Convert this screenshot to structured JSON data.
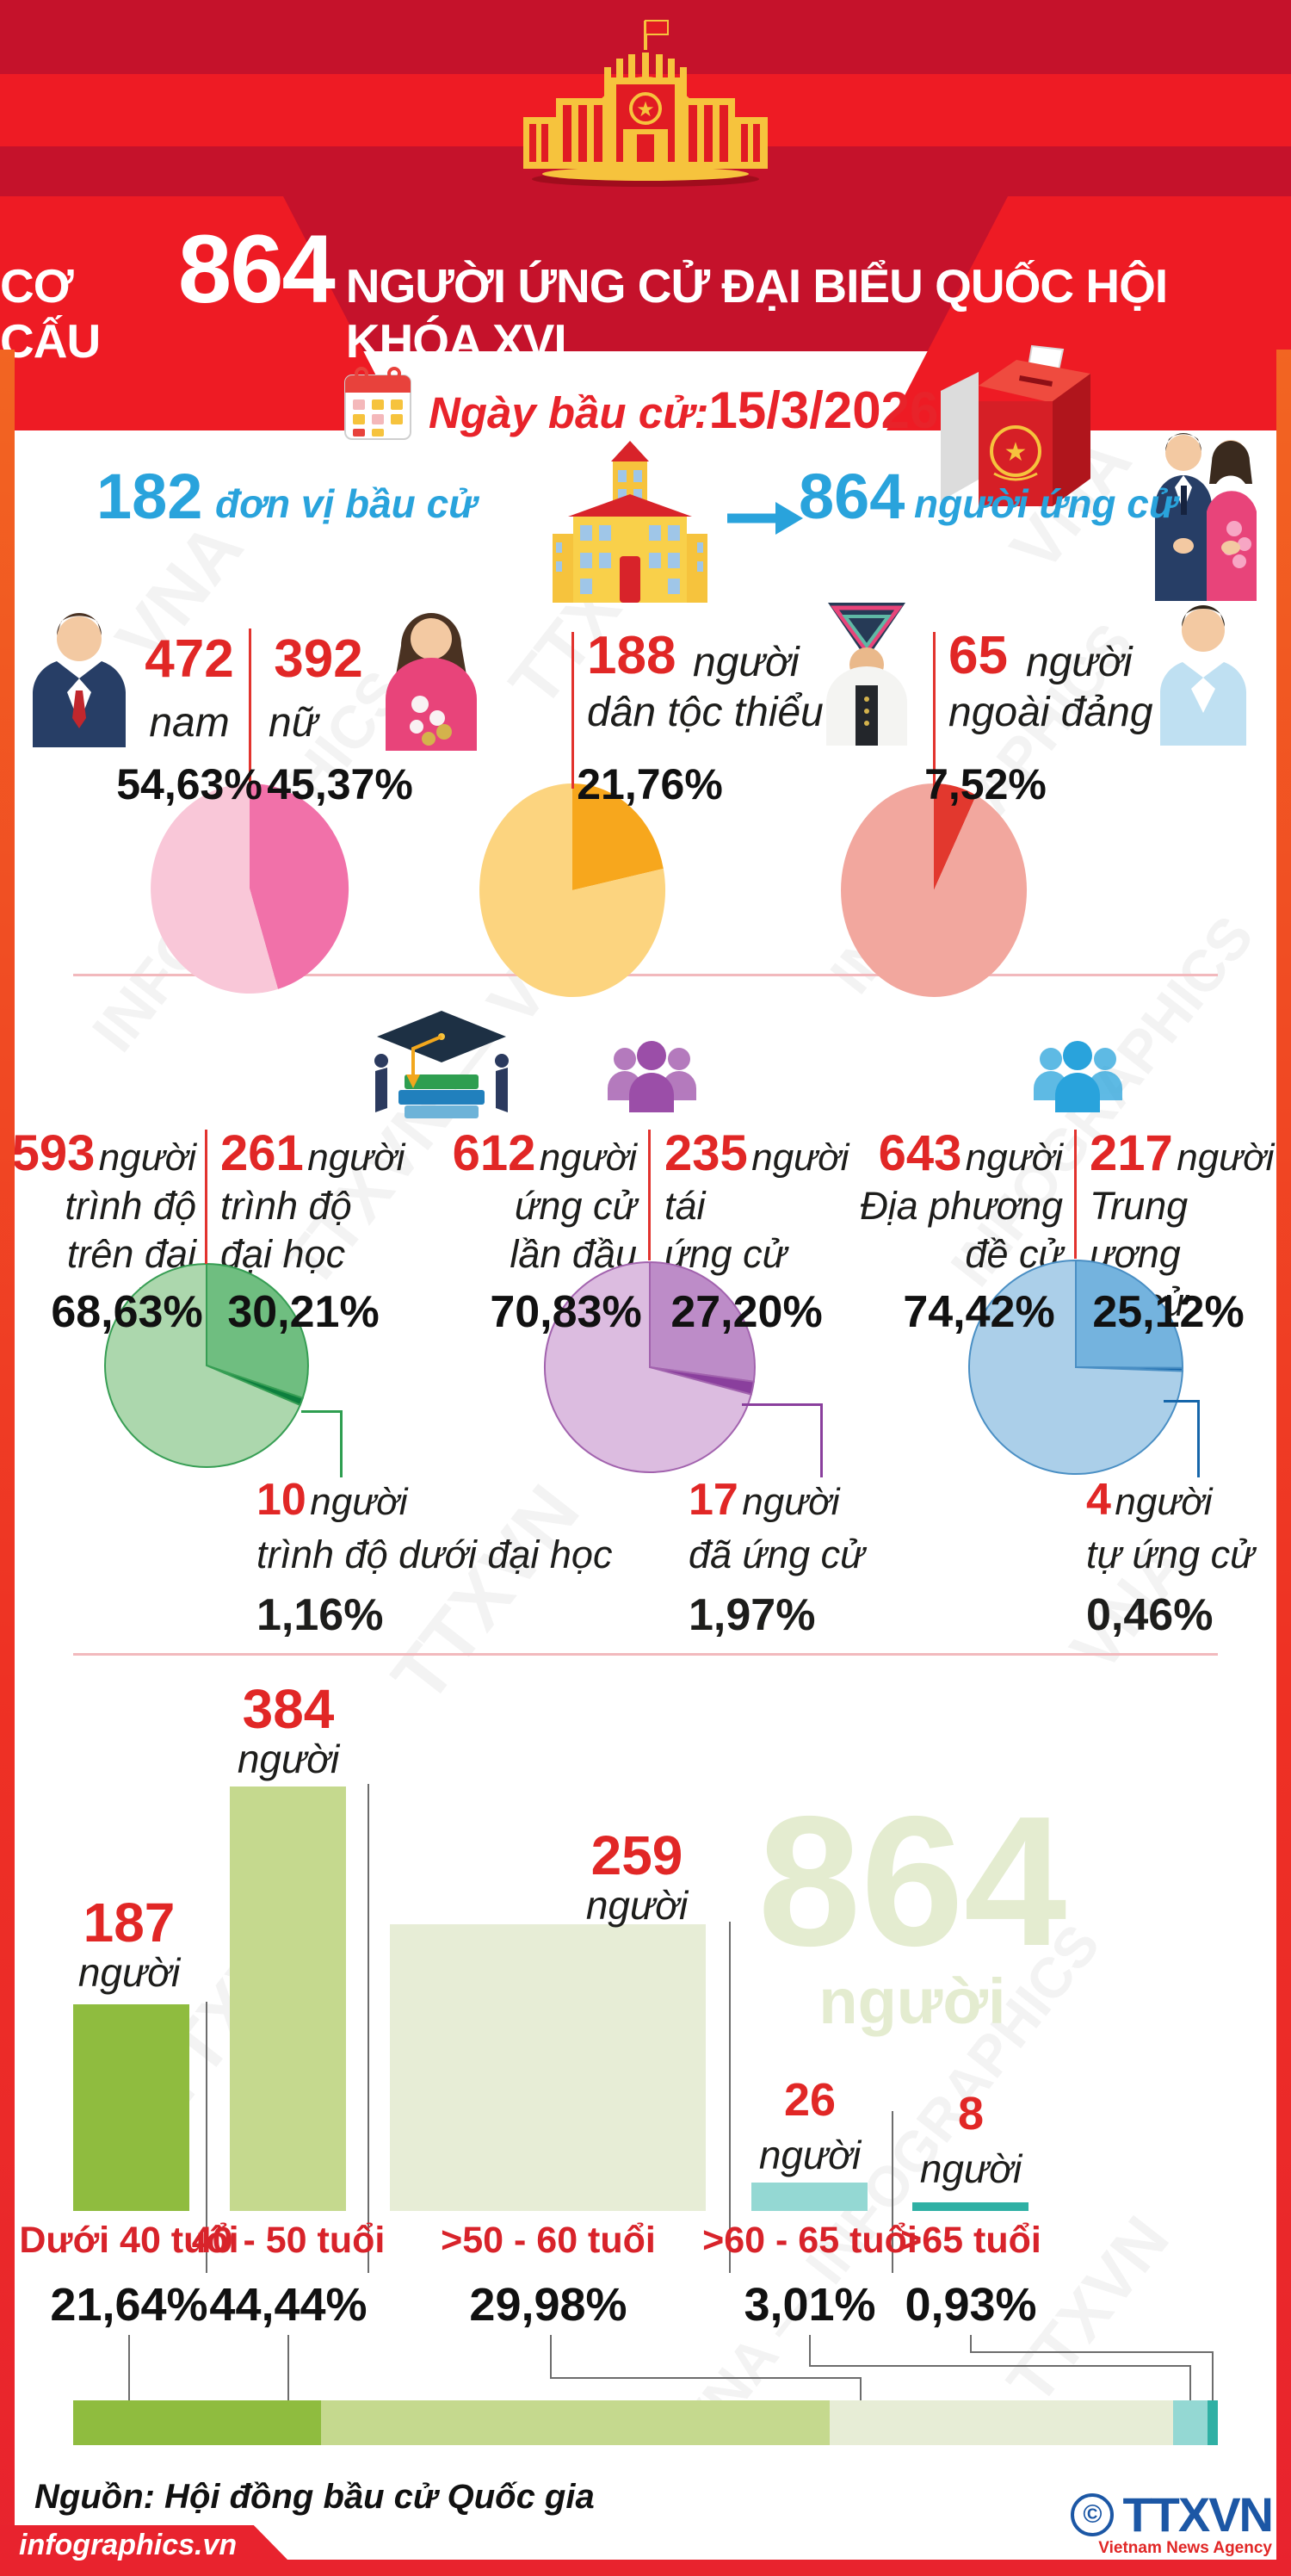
{
  "header": {
    "title_prefix": "CƠ CẤU",
    "title_number": "864",
    "title_suffix": "NGƯỜI ỨNG CỬ ĐẠI BIỂU QUỐC HỘI KHÓA XVI"
  },
  "info": {
    "date_label": "Ngày bầu cử:",
    "date_value": "15/3/2026",
    "units_number": "182",
    "units_label": "đơn vị bầu cử",
    "candidates_number": "864",
    "candidates_label": "người ứng cử"
  },
  "watermarks": [
    "TTXVN",
    "VNA",
    "INFOGRAPHICS",
    "TTXVN — VNA",
    "VNA — INFOGRAPHICS"
  ],
  "chart_data": [
    {
      "id": "gender",
      "type": "pie",
      "items": [
        {
          "number": "472",
          "unit": "",
          "label_lines": [
            "nam"
          ],
          "pct": "54,63%"
        },
        {
          "number": "392",
          "unit": "",
          "label_lines": [
            "nữ"
          ],
          "pct": "45,37%"
        }
      ],
      "slices": [
        {
          "label": "nữ",
          "value": 45.37,
          "color": "#f171a9"
        },
        {
          "label": "nam",
          "value": 54.63,
          "color": "#f9c7d8"
        }
      ]
    },
    {
      "id": "ethnic-minority",
      "type": "pie",
      "items": [
        {
          "number": "188",
          "unit": "người",
          "label_lines": [
            "dân tộc thiểu số"
          ],
          "pct": "21,76%"
        }
      ],
      "slices": [
        {
          "label": "dân tộc thiểu số",
          "value": 21.76,
          "color": "#f7a71d"
        },
        {
          "label": "",
          "value": 78.24,
          "color": "#fcd47f"
        }
      ]
    },
    {
      "id": "non-party",
      "type": "pie",
      "items": [
        {
          "number": "65",
          "unit": "người",
          "label_lines": [
            "ngoài đảng"
          ],
          "pct": "7,52%"
        }
      ],
      "slices": [
        {
          "label": "ngoài đảng",
          "value": 7.52,
          "color": "#e2382e"
        },
        {
          "label": "",
          "value": 92.48,
          "color": "#f2a79e"
        }
      ]
    },
    {
      "id": "education",
      "type": "pie",
      "outline": "#379e54",
      "items": [
        {
          "number": "593",
          "unit": "người",
          "label_lines": [
            "trình độ",
            "trên đại học"
          ],
          "pct": "68,63%"
        },
        {
          "number": "261",
          "unit": "người",
          "label_lines": [
            "trình độ",
            "đại học"
          ],
          "pct": "30,21%"
        },
        {
          "number": "10",
          "unit": "người",
          "label_lines": [
            "trình độ dưới đại học"
          ],
          "pct": "1,16%",
          "callout": true
        }
      ],
      "slices": [
        {
          "label": "trình độ đại học",
          "value": 30.21,
          "color": "#6fbe80"
        },
        {
          "label": "trình độ dưới đại học",
          "value": 1.16,
          "color": "#0d7f3e"
        },
        {
          "label": "trình độ trên đại học",
          "value": 68.63,
          "color": "#acd7ad"
        }
      ]
    },
    {
      "id": "first-time",
      "type": "pie",
      "outline": "#a263ae",
      "items": [
        {
          "number": "612",
          "unit": "người",
          "label_lines": [
            "ứng cử",
            "lần đầu"
          ],
          "pct": "70,83%"
        },
        {
          "number": "235",
          "unit": "người",
          "label_lines": [
            "tái",
            "ứng cử"
          ],
          "pct": "27,20%"
        },
        {
          "number": "17",
          "unit": "người",
          "label_lines": [
            "đã ứng cử"
          ],
          "pct": "1,97%",
          "callout": true
        }
      ],
      "slices": [
        {
          "label": "tái ứng cử",
          "value": 27.2,
          "color": "#bd8cc8"
        },
        {
          "label": "đã ứng cử",
          "value": 1.97,
          "color": "#8a3f9d"
        },
        {
          "label": "ứng cử lần đầu",
          "value": 70.83,
          "color": "#dcbce0"
        }
      ]
    },
    {
      "id": "nomination",
      "type": "pie",
      "outline": "#4a8fc4",
      "items": [
        {
          "number": "643",
          "unit": "người",
          "label_lines": [
            "Địa phương",
            "đề cử"
          ],
          "pct": "74,42%"
        },
        {
          "number": "217",
          "unit": "người",
          "label_lines": [
            "Trung ương",
            "đề cử"
          ],
          "pct": "25,12%"
        },
        {
          "number": "4",
          "unit": "người",
          "label_lines": [
            "tự ứng cử"
          ],
          "pct": "0,46%",
          "callout": true
        }
      ],
      "slices": [
        {
          "label": "Trung ương đề cử",
          "value": 25.12,
          "color": "#74b3de"
        },
        {
          "label": "tự ứng cử",
          "value": 0.46,
          "color": "#1666aa"
        },
        {
          "label": "Địa phương đề cử",
          "value": 74.42,
          "color": "#abcfe9"
        }
      ]
    },
    {
      "id": "age",
      "type": "bar",
      "categories": [
        "Dưới 40 tuổi",
        "40 - 50 tuổi",
        ">50 - 60 tuổi",
        ">60 - 65 tuổi",
        ">65 tuổi"
      ],
      "values": [
        187,
        384,
        259,
        26,
        8
      ],
      "unit": "người",
      "pcts": [
        "21,64%",
        "44,44%",
        "29,98%",
        "3,01%",
        "0,93%"
      ],
      "colors": [
        "#8fbc3f",
        "#c5d98e",
        "#e7edd6",
        "#94d8d3",
        "#2fb0a4"
      ],
      "total_number": "864",
      "total_unit": "người",
      "ylim": [
        0,
        384
      ]
    },
    {
      "id": "age-share",
      "type": "stacked-bar",
      "values": [
        21.64,
        44.44,
        29.98,
        3.01,
        0.93
      ],
      "colors": [
        "#8fbc3f",
        "#c5d98e",
        "#e7edd6",
        "#94d8d3",
        "#2fb0a4"
      ]
    }
  ],
  "footer": {
    "source": "Nguồn: Hội đồng bầu cử Quốc gia",
    "brand": "infographics.vn",
    "copyright_symbol": "©",
    "agency": "TTXVN",
    "agency_sub": "Vietnam News Agency"
  }
}
